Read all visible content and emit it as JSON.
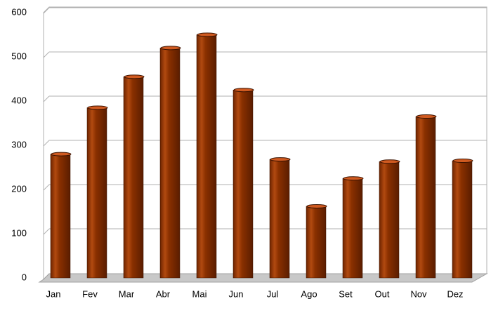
{
  "chart_data": {
    "type": "bar",
    "categories": [
      "Jan",
      "Fev",
      "Mar",
      "Abr",
      "Mai",
      "Jun",
      "Jul",
      "Ago",
      "Set",
      "Out",
      "Nov",
      "Dez"
    ],
    "values": [
      280,
      385,
      455,
      520,
      550,
      425,
      268,
      162,
      225,
      263,
      365,
      265
    ],
    "color": "#8a3000",
    "ylim": [
      0,
      600
    ],
    "yticks": [
      0,
      100,
      200,
      300,
      400,
      500,
      600
    ],
    "grid": true
  }
}
